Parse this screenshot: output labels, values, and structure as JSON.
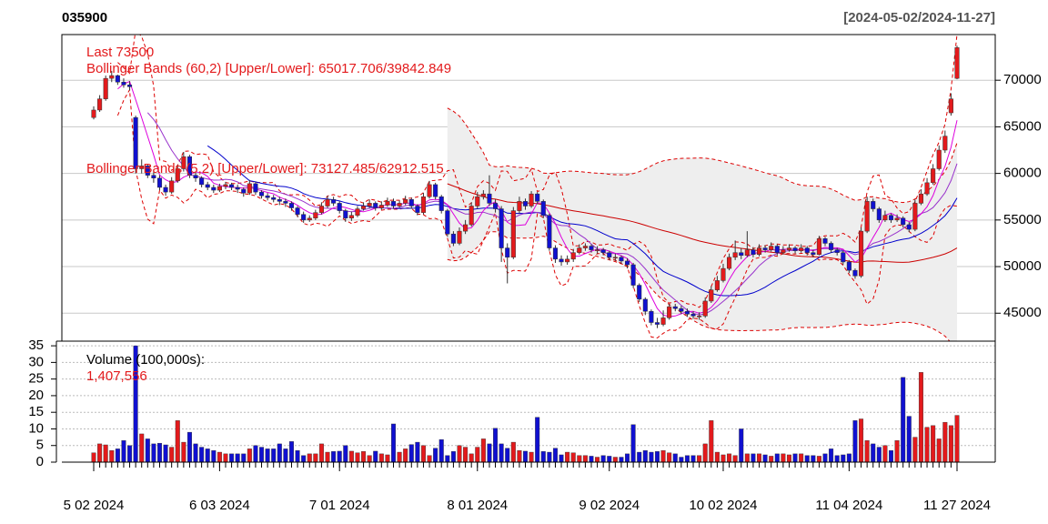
{
  "chart_data": {
    "type": "candlestick",
    "title": "035900",
    "date_range": "[2024-05-02/2024-11-27]",
    "annotations": [
      "Last 73500",
      "Bollinger Bands (60,2) [Upper/Lower]: 65017.706/39842.849",
      "Bollinger Bands (5,2) [Upper/Lower]: 73127.485/62912.515"
    ],
    "volume_title": "Volume (100,000s):",
    "volume_last_label": "1,407,556",
    "up_color": "#e31a1c",
    "down_color": "#1010d0",
    "grid": true,
    "ylim": [
      42000,
      74900
    ],
    "yticks": [
      45000,
      50000,
      55000,
      60000,
      65000,
      70000
    ],
    "volume_ylim": [
      0,
      36.4
    ],
    "volume_yticks": [
      0,
      5,
      10,
      15,
      20,
      25,
      30,
      35
    ],
    "xticks": [
      {
        "value": 0,
        "label": "5 02 2024"
      },
      {
        "value": 21,
        "label": "6 03 2024"
      },
      {
        "value": 41,
        "label": "7 01 2024"
      },
      {
        "value": 64,
        "label": "8 01 2024"
      },
      {
        "value": 86,
        "label": "9 02 2024"
      },
      {
        "value": 105,
        "label": "10 02 2024"
      },
      {
        "value": 126,
        "label": "11 04 2024"
      },
      {
        "value": 144,
        "label": "11 27 2024"
      }
    ],
    "open": [
      66000,
      66800,
      68000,
      70200,
      70500,
      69800,
      69500,
      66000,
      60500,
      60800,
      59800,
      59500,
      58500,
      58000,
      59200,
      60500,
      61800,
      59800,
      59500,
      58800,
      58500,
      58200,
      58600,
      58800,
      58500,
      58300,
      57900,
      58900,
      58000,
      57600,
      57400,
      57200,
      57000,
      56800,
      56300,
      55600,
      55000,
      55200,
      55800,
      56500,
      57200,
      56800,
      56000,
      55200,
      55500,
      56200,
      56500,
      56800,
      56300,
      56600,
      57000,
      56500,
      56800,
      57200,
      56500,
      55800,
      57500,
      58800,
      57500,
      56000,
      53500,
      52500,
      53800,
      54500,
      56500,
      57500,
      57800,
      56800,
      56200,
      52000,
      51000,
      56000,
      57000,
      56500,
      57800,
      57000,
      55500,
      52000,
      50800,
      50500,
      50800,
      51500,
      52000,
      52200,
      51800,
      51800,
      51500,
      51000,
      51000,
      50600,
      50200,
      48000,
      46500,
      45200,
      44000,
      43800,
      44500,
      45700,
      45500,
      45200,
      44900,
      44700,
      44700,
      46300,
      47500,
      48500,
      49800,
      51000,
      51500,
      51200,
      51800,
      51300,
      52000,
      51800,
      52200,
      51500,
      51800,
      52000,
      51700,
      52000,
      51500,
      51300,
      53000,
      52500,
      51800,
      51500,
      50500,
      49600,
      49000,
      53800,
      57000,
      56200,
      55000,
      55500,
      55000,
      55200,
      54500,
      54000,
      56800,
      57800,
      59000,
      60500,
      62500,
      66500,
      70200
    ],
    "high": [
      67200,
      68400,
      70500,
      71000,
      70600,
      70200,
      69900,
      66200,
      61500,
      61000,
      60200,
      59800,
      58800,
      59600,
      60900,
      62300,
      62000,
      60100,
      59700,
      59100,
      58800,
      58900,
      59100,
      59000,
      58800,
      58500,
      59300,
      59100,
      58200,
      57900,
      57700,
      57500,
      57300,
      57000,
      56500,
      55900,
      55500,
      56100,
      56900,
      57600,
      57500,
      57000,
      56200,
      55900,
      56500,
      56900,
      57200,
      57000,
      57000,
      57400,
      57300,
      57100,
      57600,
      57400,
      56700,
      57900,
      59200,
      59000,
      57700,
      56200,
      53800,
      54200,
      55000,
      56900,
      58000,
      58200,
      59800,
      57200,
      56500,
      52500,
      56400,
      57500,
      57300,
      58100,
      58000,
      57200,
      55700,
      52300,
      51200,
      51200,
      51900,
      52400,
      52500,
      52400,
      52200,
      52000,
      51700,
      51400,
      51200,
      50900,
      50400,
      48200,
      46700,
      45400,
      44500,
      45300,
      46000,
      46000,
      45800,
      45500,
      45200,
      45100,
      46700,
      47900,
      49000,
      50300,
      51400,
      52800,
      52000,
      53800,
      52100,
      52400,
      52300,
      52600,
      52400,
      52200,
      52400,
      52200,
      52400,
      52200,
      51800,
      53300,
      53200,
      52700,
      52000,
      51700,
      50700,
      49800,
      54200,
      57500,
      57300,
      56400,
      56000,
      55700,
      55600,
      55400,
      54800,
      57200,
      58300,
      59500,
      61000,
      63000,
      64600,
      68600,
      73700
    ],
    "low": [
      65800,
      66600,
      67800,
      69800,
      69500,
      69200,
      68900,
      60000,
      60000,
      59500,
      59000,
      58200,
      57600,
      57800,
      59000,
      60200,
      59500,
      59100,
      58500,
      58200,
      57900,
      58000,
      58300,
      58200,
      57900,
      57500,
      57700,
      57700,
      57300,
      57100,
      56900,
      56600,
      56400,
      56000,
      55300,
      54700,
      54800,
      55000,
      55600,
      56300,
      56500,
      55700,
      54800,
      54900,
      55300,
      56000,
      56300,
      56000,
      56100,
      56400,
      56200,
      56300,
      56600,
      56200,
      55500,
      55600,
      57300,
      57200,
      55700,
      53200,
      52200,
      52300,
      53500,
      54300,
      56200,
      57200,
      56500,
      55800,
      50500,
      48200,
      50800,
      55700,
      56100,
      56300,
      56700,
      55200,
      51700,
      50400,
      50100,
      50200,
      50500,
      51300,
      51700,
      51500,
      51400,
      51200,
      50700,
      50600,
      50300,
      49800,
      47700,
      46200,
      44800,
      43700,
      43400,
      43600,
      44300,
      45200,
      44900,
      44600,
      44400,
      44300,
      44500,
      46100,
      47300,
      48300,
      49600,
      50700,
      50800,
      51000,
      51000,
      51100,
      51500,
      51600,
      51200,
      51300,
      51600,
      51400,
      51500,
      51200,
      51000,
      51200,
      52200,
      51500,
      51200,
      50200,
      49300,
      48700,
      48800,
      53600,
      55900,
      54700,
      54800,
      54700,
      54800,
      54200,
      53700,
      53800,
      56600,
      57600,
      58800,
      60300,
      62200,
      66200,
      70100
    ],
    "close": [
      66800,
      68000,
      70200,
      70500,
      69800,
      69500,
      69300,
      60500,
      60800,
      59800,
      59500,
      58500,
      58000,
      59200,
      60500,
      61800,
      59800,
      59500,
      58800,
      58500,
      58200,
      58600,
      58800,
      58500,
      58300,
      57900,
      58900,
      58000,
      57600,
      57400,
      57200,
      57000,
      56800,
      56300,
      55600,
      55000,
      55200,
      55800,
      56500,
      57200,
      56800,
      56000,
      55200,
      55500,
      56200,
      56500,
      56800,
      56300,
      56600,
      57000,
      56500,
      56800,
      57200,
      56500,
      55800,
      57500,
      58800,
      57500,
      56000,
      53500,
      52500,
      53800,
      54500,
      56500,
      57500,
      57800,
      56800,
      56200,
      52000,
      51000,
      56000,
      57000,
      56500,
      57800,
      57000,
      55500,
      52000,
      50800,
      50500,
      50800,
      51500,
      52000,
      52200,
      51800,
      51800,
      51500,
      51000,
      51000,
      50600,
      50200,
      48000,
      46500,
      45200,
      44000,
      43800,
      44500,
      45700,
      45500,
      45200,
      44900,
      44700,
      44700,
      46300,
      47500,
      48500,
      49800,
      51000,
      51500,
      51200,
      51800,
      51300,
      52000,
      51800,
      52200,
      51500,
      51800,
      52000,
      51700,
      52000,
      51500,
      51300,
      53000,
      52500,
      51800,
      51500,
      50500,
      49600,
      49000,
      53800,
      57000,
      56200,
      55000,
      55500,
      55000,
      55200,
      54500,
      54000,
      56800,
      57800,
      59000,
      60500,
      62500,
      64000,
      68000,
      73500
    ],
    "volume": [
      2.8,
      5.5,
      5.2,
      3.5,
      4.0,
      6.5,
      5.0,
      35.0,
      8.5,
      7.0,
      5.5,
      5.7,
      5.2,
      4.5,
      12.5,
      6.0,
      9.0,
      5.5,
      4.5,
      4.0,
      3.5,
      3.0,
      2.5,
      2.5,
      2.5,
      2.5,
      4.0,
      5.0,
      4.5,
      4.0,
      4.0,
      5.5,
      4.0,
      6.2,
      3.5,
      2.0,
      2.5,
      2.5,
      5.5,
      3.0,
      3.2,
      3.3,
      5.0,
      3.3,
      2.8,
      3.2,
      2.0,
      3.3,
      2.5,
      2.2,
      11.5,
      3.0,
      4.0,
      5.3,
      6.0,
      5.0,
      2.0,
      4.2,
      6.8,
      2.0,
      3.2,
      5.0,
      4.5,
      2.5,
      4.5,
      7.0,
      5.5,
      10.2,
      5.5,
      4.2,
      6.0,
      3.5,
      3.3,
      3.0,
      13.5,
      3.2,
      3.0,
      4.2,
      2.2,
      3.0,
      2.8,
      2.0,
      2.0,
      1.8,
      1.5,
      2.0,
      1.8,
      1.5,
      1.5,
      2.5,
      11.3,
      3.0,
      3.5,
      3.0,
      3.2,
      3.5,
      2.8,
      2.5,
      1.5,
      2.0,
      2.0,
      2.0,
      5.5,
      12.5,
      3.0,
      2.2,
      2.5,
      2.0,
      10.0,
      2.5,
      2.5,
      2.5,
      2.2,
      1.8,
      2.5,
      2.5,
      2.2,
      2.5,
      2.5,
      2.0,
      2.0,
      1.8,
      2.5,
      4.0,
      2.0,
      2.2,
      2.5,
      12.5,
      13.0,
      6.5,
      5.5,
      4.5,
      5.0,
      3.5,
      6.5,
      25.5,
      13.8,
      7.5,
      27.0,
      10.5,
      11.0,
      7.0,
      12.0,
      11.0,
      14.07556
    ]
  }
}
